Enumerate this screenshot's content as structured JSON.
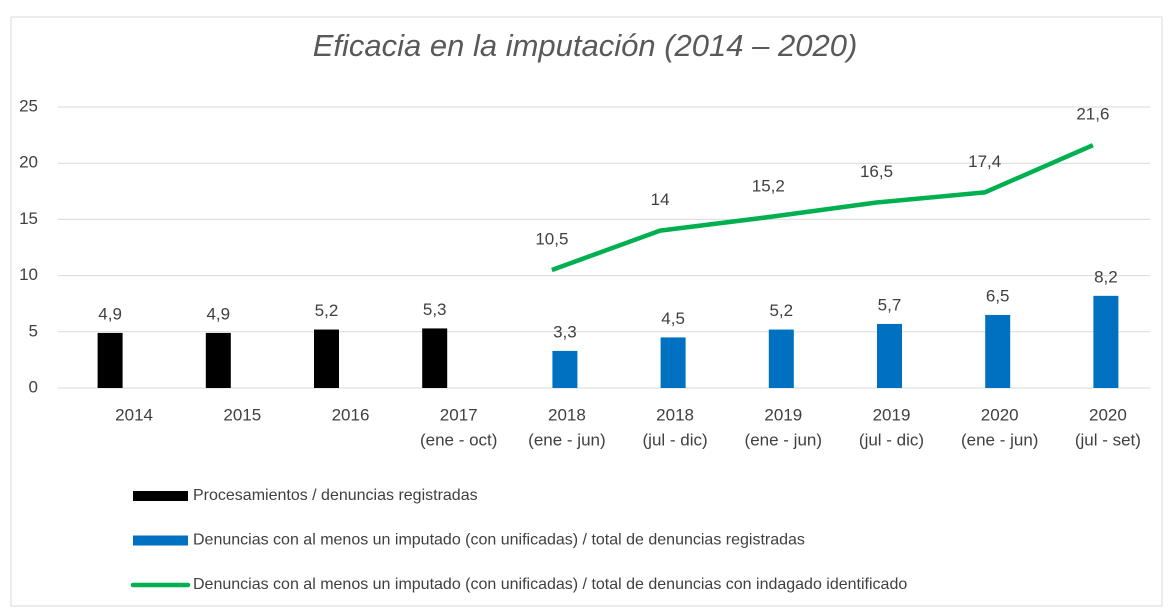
{
  "chart_data": {
    "type": "bar",
    "title": "Eficacia en la imputación (2014 – 2020)",
    "categories": [
      [
        "2014"
      ],
      [
        "2015"
      ],
      [
        "2016"
      ],
      [
        "2017",
        "(ene - oct)"
      ],
      [
        "2018",
        "(ene - jun)"
      ],
      [
        "2018",
        "(jul - dic)"
      ],
      [
        "2019",
        "(ene - jun)"
      ],
      [
        "2019",
        "(jul - dic)"
      ],
      [
        "2020",
        "(ene - jun)"
      ],
      [
        "2020",
        "(jul - set)"
      ]
    ],
    "series": [
      {
        "name": "Procesamientos / denuncias registradas",
        "type": "bar",
        "color": "#000000",
        "values": [
          4.9,
          4.9,
          5.2,
          5.3,
          null,
          null,
          null,
          null,
          null,
          null
        ],
        "value_labels": [
          "4,9",
          "4,9",
          "5,2",
          "5,3",
          null,
          null,
          null,
          null,
          null,
          null
        ]
      },
      {
        "name": "Denuncias con al menos un imputado (con unificadas) / total de denuncias registradas",
        "type": "bar",
        "color": "#0070c0",
        "values": [
          null,
          null,
          null,
          null,
          3.3,
          4.5,
          5.2,
          5.7,
          6.5,
          8.2
        ],
        "value_labels": [
          null,
          null,
          null,
          null,
          "3,3",
          "4,5",
          "5,2",
          "5,7",
          "6,5",
          "8,2"
        ]
      },
      {
        "name": "Denuncias con al menos un imputado (con unificadas) / total de denuncias con indagado identificado",
        "type": "line",
        "color": "#00b050",
        "values": [
          null,
          null,
          null,
          null,
          10.5,
          14,
          15.2,
          16.5,
          17.4,
          21.6
        ],
        "value_labels": [
          null,
          null,
          null,
          null,
          "10,5",
          "14",
          "15,2",
          "16,5",
          "17,4",
          "21,6"
        ]
      }
    ],
    "ylim": [
      0,
      25
    ],
    "yticks": [
      0,
      5,
      10,
      15,
      20,
      25
    ],
    "grid": true,
    "legend": "bottom"
  }
}
